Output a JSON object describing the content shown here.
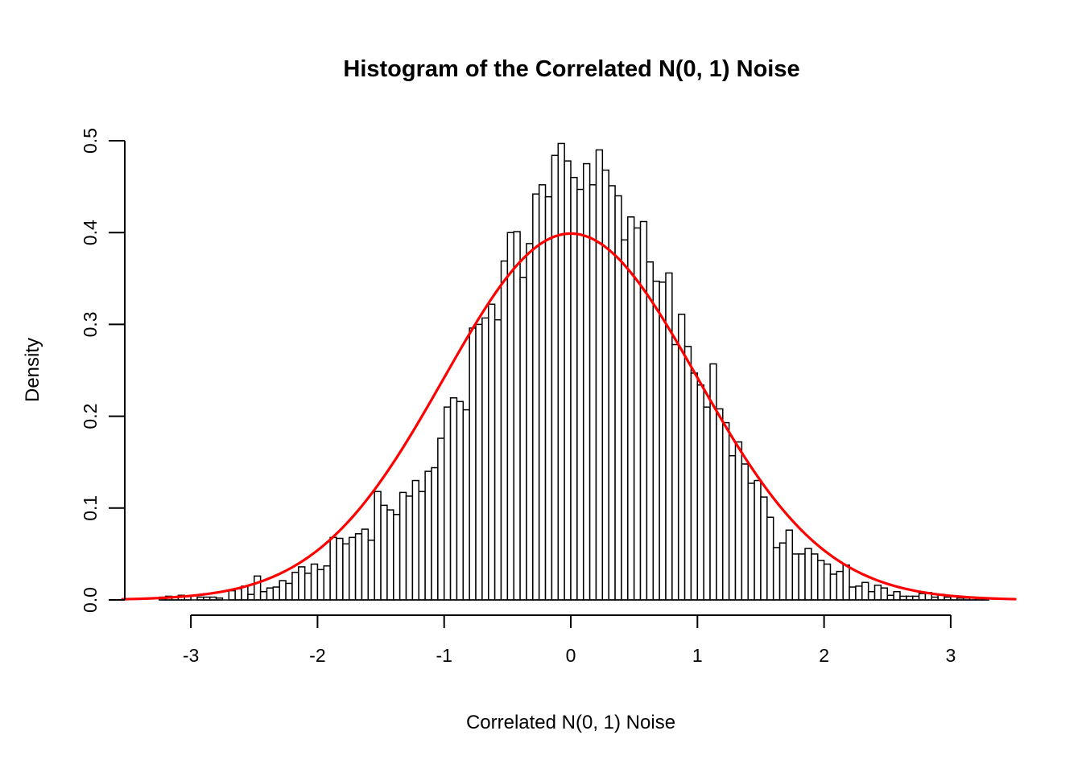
{
  "figure": {
    "title": "Histogram of the Correlated N(0, 1) Noise",
    "x_axis": {
      "label": "Correlated N(0, 1) Noise",
      "tick_labels": [
        "-3",
        "-2",
        "-1",
        "0",
        "1",
        "2",
        "3"
      ],
      "tick_values": [
        -3,
        -2,
        -1,
        0,
        1,
        2,
        3
      ]
    },
    "y_axis": {
      "label": "Density",
      "tick_labels": [
        "0.0",
        "0.1",
        "0.2",
        "0.3",
        "0.4",
        "0.5"
      ],
      "tick_values": [
        0.0,
        0.1,
        0.2,
        0.3,
        0.4,
        0.5
      ]
    },
    "colors": {
      "background": "#ffffff",
      "bar_fill": "#ffffff",
      "bar_border": "#000000",
      "axis": "#000000",
      "text": "#000000",
      "curve": "#ff0000"
    }
  },
  "chart_data": {
    "type": "bar",
    "subtype": "histogram_with_overlaid_density_curve",
    "title": "Histogram of the Correlated N(0, 1) Noise",
    "xlabel": "Correlated N(0, 1) Noise",
    "ylabel": "Density",
    "xlim": [
      -3.55,
      3.55
    ],
    "ylim": [
      0,
      0.5
    ],
    "grid": false,
    "legend": false,
    "bin_width": 0.05,
    "bin_start": -3.25,
    "densities": [
      0.003,
      0.004,
      0.003,
      0.005,
      0.004,
      0.0,
      0.003,
      0.003,
      0.003,
      0.002,
      0.0,
      0.01,
      0.012,
      0.015,
      0.006,
      0.026,
      0.009,
      0.013,
      0.014,
      0.021,
      0.018,
      0.03,
      0.036,
      0.029,
      0.039,
      0.033,
      0.037,
      0.068,
      0.067,
      0.061,
      0.068,
      0.072,
      0.077,
      0.065,
      0.118,
      0.103,
      0.098,
      0.093,
      0.117,
      0.113,
      0.13,
      0.118,
      0.14,
      0.144,
      0.176,
      0.21,
      0.22,
      0.216,
      0.207,
      0.296,
      0.3,
      0.307,
      0.322,
      0.305,
      0.369,
      0.4,
      0.401,
      0.351,
      0.388,
      0.442,
      0.452,
      0.439,
      0.484,
      0.497,
      0.478,
      0.46,
      0.447,
      0.475,
      0.452,
      0.49,
      0.468,
      0.451,
      0.44,
      0.392,
      0.417,
      0.405,
      0.412,
      0.368,
      0.347,
      0.346,
      0.356,
      0.278,
      0.311,
      0.276,
      0.247,
      0.234,
      0.21,
      0.257,
      0.208,
      0.193,
      0.157,
      0.172,
      0.148,
      0.127,
      0.13,
      0.112,
      0.09,
      0.057,
      0.062,
      0.076,
      0.05,
      0.05,
      0.056,
      0.05,
      0.043,
      0.039,
      0.028,
      0.031,
      0.038,
      0.014,
      0.015,
      0.019,
      0.009,
      0.016,
      0.013,
      0.005,
      0.009,
      0.004,
      0.004,
      0.004,
      0.007,
      0.008,
      0.003,
      0.006,
      0.003,
      0.004,
      0.002,
      0.002,
      0.002,
      0.002,
      0.002
    ],
    "overlay_curve": {
      "name": "standard-normal-density",
      "formula": "dnorm(x, mean = 0, sd = 1)",
      "peak_density": 0.3989,
      "x_range": [
        -3.54,
        3.52
      ],
      "color": "#ff0000"
    }
  }
}
